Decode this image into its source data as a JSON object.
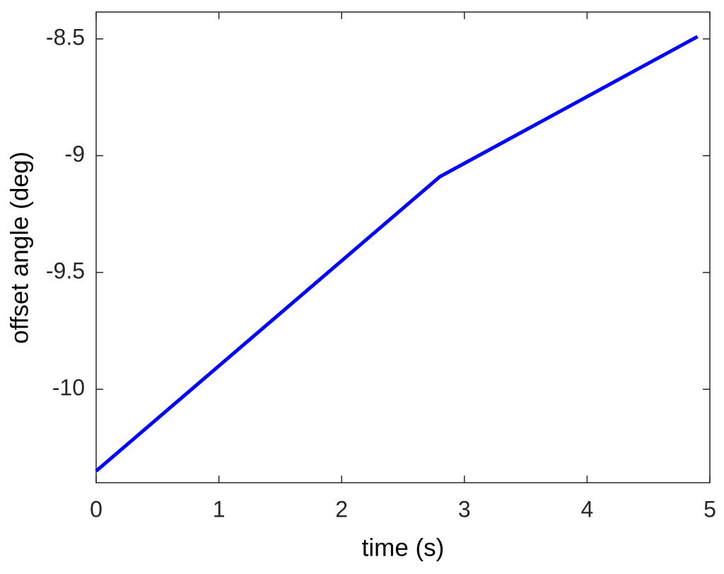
{
  "chart_data": {
    "type": "line",
    "xlabel": "time (s)",
    "ylabel": "offset angle (deg)",
    "x": [
      0,
      2.8,
      4.9
    ],
    "series": [
      {
        "color": "#0000ff",
        "values": [
          -10.35,
          -9.09,
          -8.49
        ]
      }
    ],
    "xlim": [
      0,
      5
    ],
    "xticks": [
      0,
      1,
      2,
      3,
      4,
      5
    ],
    "ylim": [
      -10.4,
      -8.385
    ],
    "yticks": [
      -10,
      -9.5,
      -9,
      -8.5
    ],
    "grid": false
  }
}
